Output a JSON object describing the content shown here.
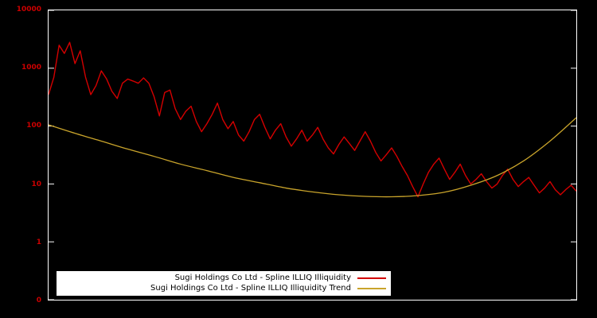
{
  "chart_data": {
    "type": "line",
    "title": "",
    "xlabel": "",
    "ylabel": "",
    "yscale": "log",
    "ylim": [
      0.1,
      10000
    ],
    "ytick_labels": [
      "10000",
      "1000",
      "100",
      "10",
      "1",
      "0"
    ],
    "grid": false,
    "legend_position": "bottom-inside-left",
    "colors": {
      "background": "#000000",
      "frame": "#ffffff",
      "tick_label": "#cc0000",
      "legend_bg": "#ffffff",
      "legend_text": "#000000"
    },
    "series": [
      {
        "name": "Sugi Holdings Co Ltd - Spline ILLIQ Illiquidity",
        "color": "#d40000",
        "stroke_width": 1.4,
        "smooth": false,
        "values": [
          350,
          700,
          2500,
          1800,
          2800,
          1200,
          2000,
          700,
          350,
          500,
          900,
          650,
          400,
          300,
          550,
          650,
          600,
          550,
          680,
          550,
          320,
          150,
          380,
          420,
          200,
          130,
          180,
          220,
          120,
          80,
          110,
          160,
          250,
          130,
          90,
          120,
          70,
          55,
          80,
          130,
          160,
          95,
          60,
          85,
          110,
          65,
          45,
          60,
          85,
          55,
          70,
          95,
          60,
          42,
          33,
          48,
          65,
          50,
          38,
          55,
          80,
          55,
          35,
          25,
          32,
          42,
          30,
          20,
          14,
          9,
          6,
          10,
          16,
          22,
          28,
          18,
          12,
          16,
          22,
          14,
          10,
          12,
          15,
          11,
          8.5,
          10,
          14,
          18,
          12,
          9,
          11,
          13,
          9.5,
          7,
          8.5,
          11,
          8,
          6.5,
          8,
          9.5,
          7.5
        ]
      },
      {
        "name": "Sugi Holdings Co Ltd - Spline ILLIQ Illiquidity Trend",
        "color": "#c9a42b",
        "stroke_width": 1.3,
        "smooth": true,
        "values": [
          105,
          75,
          55,
          40,
          30,
          22,
          17,
          13,
          10.5,
          8.5,
          7.3,
          6.5,
          6.1,
          6.0,
          6.3,
          7.2,
          9.5,
          14,
          25,
          55,
          140
        ]
      }
    ]
  }
}
